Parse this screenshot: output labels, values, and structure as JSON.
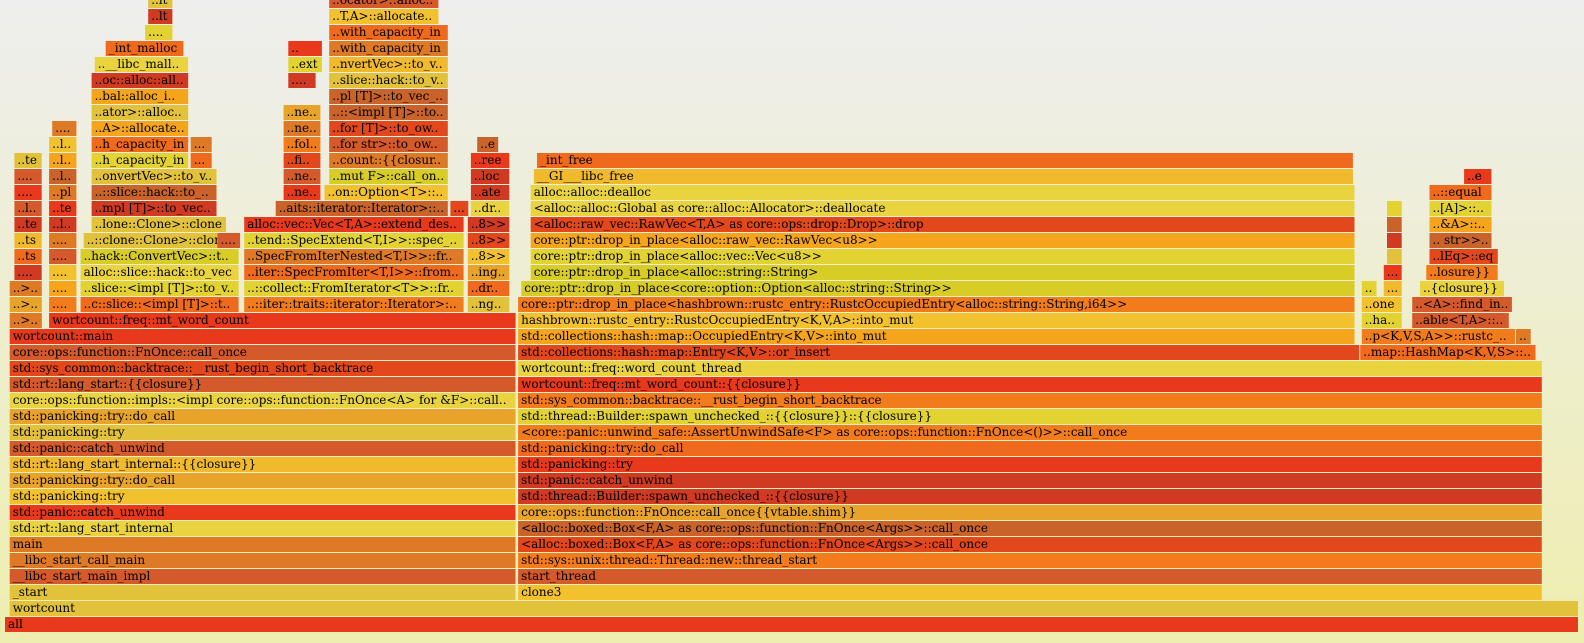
{
  "chart_data": {
    "type": "flamegraph",
    "total_samples": 1000,
    "palette": [
      "#e3471c",
      "#f06a1e",
      "#e8a32a",
      "#f2c12e",
      "#e2d232",
      "#d8cd27",
      "#f5a51b",
      "#d55a2b",
      "#c9632a",
      "#e8391d",
      "#f27b1c",
      "#e9d440",
      "#d13a22",
      "#f0ba2c",
      "#de7a26",
      "#e2c23b"
    ],
    "frames": [
      {
        "name": "all",
        "depth": 0,
        "start": 0,
        "width": 1000
      },
      {
        "name": "wortcount",
        "depth": 1,
        "start": 3,
        "width": 997
      },
      {
        "name": "_start",
        "depth": 2,
        "start": 3,
        "width": 322
      },
      {
        "name": "clone3",
        "depth": 2,
        "start": 326,
        "width": 651
      },
      {
        "name": "__libc_start_main_impl",
        "depth": 3,
        "start": 3,
        "width": 322
      },
      {
        "name": "start_thread",
        "depth": 3,
        "start": 326,
        "width": 651
      },
      {
        "name": "__libc_start_call_main",
        "depth": 4,
        "start": 3,
        "width": 322
      },
      {
        "name": "std::sys::unix::thread::Thread::new::thread_start",
        "depth": 4,
        "start": 326,
        "width": 651
      },
      {
        "name": "main",
        "depth": 5,
        "start": 3,
        "width": 322
      },
      {
        "name": "<alloc::boxed::Box<F,A> as core::ops::function::FnOnce<Args>>::call_once",
        "depth": 5,
        "start": 326,
        "width": 651
      },
      {
        "name": "std::rt::lang_start_internal",
        "depth": 6,
        "start": 3,
        "width": 322
      },
      {
        "name": "<alloc::boxed::Box<F,A> as core::ops::function::FnOnce<Args>>::call_once",
        "depth": 6,
        "start": 326,
        "width": 651
      },
      {
        "name": "std::panic::catch_unwind",
        "depth": 7,
        "start": 3,
        "width": 322
      },
      {
        "name": "core::ops::function::FnOnce::call_once{{vtable.shim}}",
        "depth": 7,
        "start": 326,
        "width": 651
      },
      {
        "name": "std::panicking::try",
        "depth": 8,
        "start": 3,
        "width": 322
      },
      {
        "name": "std::thread::Builder::spawn_unchecked_::{{closure}}",
        "depth": 8,
        "start": 326,
        "width": 651
      },
      {
        "name": "std::panicking::try::do_call",
        "depth": 9,
        "start": 3,
        "width": 322
      },
      {
        "name": "std::panic::catch_unwind",
        "depth": 9,
        "start": 326,
        "width": 651
      },
      {
        "name": "std::rt::lang_start_internal::{{closure}}",
        "depth": 10,
        "start": 3,
        "width": 322
      },
      {
        "name": "std::panicking::try",
        "depth": 10,
        "start": 326,
        "width": 651
      },
      {
        "name": "std::panic::catch_unwind",
        "depth": 11,
        "start": 3,
        "width": 322
      },
      {
        "name": "std::panicking::try::do_call",
        "depth": 11,
        "start": 326,
        "width": 651
      },
      {
        "name": "std::panicking::try",
        "depth": 12,
        "start": 3,
        "width": 322
      },
      {
        "name": "<core::panic::unwind_safe::AssertUnwindSafe<F> as core::ops::function::FnOnce<()>>::call_once",
        "depth": 12,
        "start": 326,
        "width": 651
      },
      {
        "name": "std::panicking::try::do_call",
        "depth": 13,
        "start": 3,
        "width": 322
      },
      {
        "name": "std::thread::Builder::spawn_unchecked_::{{closure}}::{{closure}}",
        "depth": 13,
        "start": 326,
        "width": 651
      },
      {
        "name": "core::ops::function::impls::<impl core::ops::function::FnOnce<A> for &F>::call_once",
        "depth": 14,
        "start": 3,
        "width": 322
      },
      {
        "name": "std::sys_common::backtrace::__rust_begin_short_backtrace",
        "depth": 14,
        "start": 326,
        "width": 651
      },
      {
        "name": "std::rt::lang_start::{{closure}}",
        "depth": 15,
        "start": 3,
        "width": 322
      },
      {
        "name": "wortcount::freq::mt_word_count::{{closure}}",
        "depth": 15,
        "start": 326,
        "width": 651
      },
      {
        "name": "std::sys_common::backtrace::__rust_begin_short_backtrace",
        "depth": 16,
        "start": 3,
        "width": 322
      },
      {
        "name": "wortcount::freq::word_count_thread",
        "depth": 16,
        "start": 326,
        "width": 651
      },
      {
        "name": "core::ops::function::FnOnce::call_once",
        "depth": 17,
        "start": 3,
        "width": 322
      },
      {
        "name": "std::collections::hash::map::Entry<K,V>::or_insert",
        "depth": 17,
        "start": 326,
        "width": 535
      },
      {
        "name": "..map::HashMap<K,V,S>::entry",
        "depth": 17,
        "start": 861,
        "width": 112
      },
      {
        "name": "wortcount::main",
        "depth": 18,
        "start": 3,
        "width": 322
      },
      {
        "name": "std::collections::hash::map::OccupiedEntry<K,V>::into_mut",
        "depth": 18,
        "start": 326,
        "width": 532
      },
      {
        "name": "..p<K,V,S,A>>::rustc_entry",
        "depth": 18,
        "start": 862,
        "width": 98
      },
      {
        "name": "..",
        "depth": 18,
        "start": 960,
        "width": 10
      },
      {
        "name": "..>>",
        "depth": 19,
        "start": 3,
        "width": 21
      },
      {
        "name": "wortcount::freq::mt_word_count",
        "depth": 19,
        "start": 28,
        "width": 297
      },
      {
        "name": "hashbrown::rustc_entry::RustcOccupiedEntry<K,V,A>::into_mut",
        "depth": 19,
        "start": 326,
        "width": 532
      },
      {
        "name": "..hash",
        "depth": 19,
        "start": 862,
        "width": 26
      },
      {
        "name": "..able<T,A>::find",
        "depth": 19,
        "start": 894,
        "width": 62
      },
      {
        "name": "..>>",
        "depth": 20,
        "start": 3,
        "width": 21
      },
      {
        "name": "..ne",
        "depth": 20,
        "start": 28,
        "width": 18
      },
      {
        "name": "..c::slice::<impl [T]>::to_vec",
        "depth": 20,
        "start": 48,
        "width": 101
      },
      {
        "name": "..::iter::traits::iterator::Iterator>::collect",
        "depth": 20,
        "start": 152,
        "width": 140
      },
      {
        "name": "..ng>>",
        "depth": 20,
        "start": 294,
        "width": 27
      },
      {
        "name": "core::ptr::drop_in_place<hashbrown::rustc_entry::RustcOccupiedEntry<alloc::string::String,i64>>",
        "depth": 20,
        "start": 326,
        "width": 532
      },
      {
        "name": "..one",
        "depth": 20,
        "start": 862,
        "width": 26
      },
      {
        "name": "..<A>::find_inner",
        "depth": 20,
        "start": 894,
        "width": 64
      },
      {
        "name": "..>>",
        "depth": 21,
        "start": 3,
        "width": 21
      },
      {
        "name": "..ne",
        "depth": 21,
        "start": 28,
        "width": 18
      },
      {
        "name": "..slice::<impl [T]>::to_vec_in",
        "depth": 21,
        "start": 48,
        "width": 101
      },
      {
        "name": "..::collect::FromIterator<T>>::from_iter",
        "depth": 21,
        "start": 152,
        "width": 140
      },
      {
        "name": "..drop",
        "depth": 21,
        "start": 294,
        "width": 27
      },
      {
        "name": "core::ptr::drop_in_place<core::option::Option<alloc::string::String>>",
        "depth": 21,
        "start": 328,
        "width": 530
      },
      {
        "name": "..",
        "depth": 21,
        "start": 862,
        "width": 10
      },
      {
        "name": "..h",
        "depth": 21,
        "start": 876,
        "width": 12
      },
      {
        "name": "..{closure}}",
        "depth": 21,
        "start": 899,
        "width": 54
      },
      {
        "name": "..op",
        "depth": 22,
        "start": 6,
        "width": 18
      },
      {
        "name": "..ne",
        "depth": 22,
        "start": 28,
        "width": 18
      },
      {
        "name": "alloc::slice::hack::to_vec",
        "depth": 22,
        "start": 48,
        "width": 101
      },
      {
        "name": "..iter::SpecFromIter<T,I>>::from_iter",
        "depth": 22,
        "start": 152,
        "width": 140
      },
      {
        "name": "..ing]>",
        "depth": 22,
        "start": 294,
        "width": 27
      },
      {
        "name": "core::ptr::drop_in_place<alloc::string::String>",
        "depth": 22,
        "start": 334,
        "width": 524
      },
      {
        "name": "..h",
        "depth": 22,
        "start": 876,
        "width": 12
      },
      {
        "name": "..losure}}",
        "depth": 22,
        "start": 903,
        "width": 46
      },
      {
        "name": "..ts",
        "depth": 23,
        "start": 6,
        "width": 18
      },
      {
        "name": "..ed",
        "depth": 23,
        "start": 28,
        "width": 18
      },
      {
        "name": "..hack::ConvertVec>::to_vec",
        "depth": 23,
        "start": 48,
        "width": 101
      },
      {
        "name": "..SpecFromIterNested<T,I>>::from_iter",
        "depth": 23,
        "start": 152,
        "width": 140
      },
      {
        "name": "..8>>",
        "depth": 23,
        "start": 294,
        "width": 27
      },
      {
        "name": "core::ptr::drop_in_place<alloc::vec::Vec<u8>>",
        "depth": 23,
        "start": 334,
        "width": 524
      },
      {
        "name": "..r",
        "depth": 23,
        "start": 878,
        "width": 10
      },
      {
        "name": "..lEq>::eq",
        "depth": 23,
        "start": 905,
        "width": 44
      },
      {
        "name": "..ts",
        "depth": 24,
        "start": 6,
        "width": 18
      },
      {
        "name": "..ed",
        "depth": 24,
        "start": 28,
        "width": 18
      },
      {
        "name": "..::clone::Clone>::clone",
        "depth": 24,
        "start": 50,
        "width": 99
      },
      {
        "name": "..te",
        "depth": 24,
        "start": 135,
        "width": 15
      },
      {
        "name": "..tend::SpecExtend<T,I>>::spec_extend",
        "depth": 24,
        "start": 152,
        "width": 140
      },
      {
        "name": "..8>>",
        "depth": 24,
        "start": 294,
        "width": 27
      },
      {
        "name": "core::ptr::drop_in_place<alloc::raw_vec::RawVec<u8>>",
        "depth": 24,
        "start": 334,
        "width": 524
      },
      {
        "name": "..r",
        "depth": 24,
        "start": 878,
        "width": 10
      },
      {
        "name": ".. str>>::eq",
        "depth": 24,
        "start": 905,
        "width": 40
      },
      {
        "name": "..te",
        "depth": 25,
        "start": 6,
        "width": 18
      },
      {
        "name": "..loc",
        "depth": 25,
        "start": 28,
        "width": 18
      },
      {
        "name": "..lone::Clone>::clone",
        "depth": 25,
        "start": 55,
        "width": 86
      },
      {
        "name": "alloc::vec::Vec<T,A>::extend_desugared",
        "depth": 25,
        "start": 152,
        "width": 140
      },
      {
        "name": "..8>>",
        "depth": 25,
        "start": 294,
        "width": 27
      },
      {
        "name": "<alloc::raw_vec::RawVec<T,A> as core::ops::drop::Drop>::drop",
        "depth": 25,
        "start": 334,
        "width": 524
      },
      {
        "name": "..r",
        "depth": 25,
        "start": 878,
        "width": 10
      },
      {
        "name": "..&A>::eq",
        "depth": 25,
        "start": 905,
        "width": 40
      },
      {
        "name": "..loc",
        "depth": 26,
        "start": 6,
        "width": 18
      },
      {
        "name": "..te",
        "depth": 26,
        "start": 28,
        "width": 18
      },
      {
        "name": "..mpl [T]>::to_vec_in",
        "depth": 26,
        "start": 55,
        "width": 80
      },
      {
        "name": "..aits::iterator::Iterator>::next",
        "depth": 26,
        "start": 172,
        "width": 110
      },
      {
        "name": "..e",
        "depth": 26,
        "start": 283,
        "width": 12
      },
      {
        "name": "..drop",
        "depth": 26,
        "start": 296,
        "width": 25
      },
      {
        "name": "<alloc::alloc::Global as core::alloc::Allocator>::deallocate",
        "depth": 26,
        "start": 334,
        "width": 524
      },
      {
        "name": "..r",
        "depth": 26,
        "start": 878,
        "width": 10
      },
      {
        "name": "..[A]>::eq",
        "depth": 26,
        "start": 905,
        "width": 40
      },
      {
        "name": "..ee",
        "depth": 27,
        "start": 6,
        "width": 18
      },
      {
        "name": "..pl",
        "depth": 27,
        "start": 28,
        "width": 18
      },
      {
        "name": "..::slice::hack::to_vec",
        "depth": 27,
        "start": 55,
        "width": 80
      },
      {
        "name": "..next",
        "depth": 27,
        "start": 177,
        "width": 24
      },
      {
        "name": "..on::Option<T>::map",
        "depth": 27,
        "start": 203,
        "width": 79
      },
      {
        "name": "..ate",
        "depth": 27,
        "start": 296,
        "width": 25
      },
      {
        "name": "alloc::alloc::dealloc",
        "depth": 27,
        "start": 334,
        "width": 524
      },
      {
        "name": "..::equal",
        "depth": 27,
        "start": 905,
        "width": 40
      },
      {
        "name": "..ee",
        "depth": 28,
        "start": 6,
        "width": 18
      },
      {
        "name": "..loc",
        "depth": 28,
        "start": 28,
        "width": 18
      },
      {
        "name": "..onvertVec>::to_vec",
        "depth": 28,
        "start": 55,
        "width": 80
      },
      {
        "name": "..next",
        "depth": 28,
        "start": 177,
        "width": 24
      },
      {
        "name": "..mut F>::call_once",
        "depth": 28,
        "start": 206,
        "width": 76
      },
      {
        "name": "..loc",
        "depth": 28,
        "start": 296,
        "width": 25
      },
      {
        "name": "__GI___libc_free",
        "depth": 28,
        "start": 336,
        "width": 521
      },
      {
        "name": "..e",
        "depth": 28,
        "start": 927,
        "width": 18
      },
      {
        "name": "..te",
        "depth": 29,
        "start": 6,
        "width": 18
      },
      {
        "name": "..loc",
        "depth": 29,
        "start": 28,
        "width": 18
      },
      {
        "name": "..h_capacity_in",
        "depth": 29,
        "start": 55,
        "width": 62
      },
      {
        "name": "..g",
        "depth": 29,
        "start": 118,
        "width": 14
      },
      {
        "name": "..find",
        "depth": 29,
        "start": 177,
        "width": 24
      },
      {
        "name": "..count::{{closure}}",
        "depth": 29,
        "start": 206,
        "width": 76
      },
      {
        "name": "..ree",
        "depth": 29,
        "start": 296,
        "width": 25
      },
      {
        "name": "_int_free",
        "depth": 29,
        "start": 338,
        "width": 519
      },
      {
        "name": "..loc",
        "depth": 30,
        "start": 28,
        "width": 18
      },
      {
        "name": "..h_capacity_in",
        "depth": 30,
        "start": 55,
        "width": 62
      },
      {
        "name": "..g",
        "depth": 30,
        "start": 118,
        "width": 14
      },
      {
        "name": "..fold",
        "depth": 30,
        "start": 177,
        "width": 24
      },
      {
        "name": "..for str>::to_owned",
        "depth": 30,
        "start": 206,
        "width": 76
      },
      {
        "name": "..e",
        "depth": 30,
        "start": 300,
        "width": 14
      },
      {
        "name": "..te",
        "depth": 31,
        "start": 30,
        "width": 16
      },
      {
        "name": "..A>::allocate_in",
        "depth": 31,
        "start": 55,
        "width": 62
      },
      {
        "name": "..next",
        "depth": 31,
        "start": 177,
        "width": 24
      },
      {
        "name": "..for [T]>::to_owned",
        "depth": 31,
        "start": 206,
        "width": 76
      },
      {
        "name": "..ator>::allocate",
        "depth": 32,
        "start": 55,
        "width": 62
      },
      {
        "name": "..next",
        "depth": 32,
        "start": 177,
        "width": 24
      },
      {
        "name": "..::<impl [T]>::to_vec",
        "depth": 32,
        "start": 206,
        "width": 76
      },
      {
        "name": "..bal::alloc_impl",
        "depth": 33,
        "start": 55,
        "width": 62
      },
      {
        "name": "..pl [T]>::to_vec_in",
        "depth": 33,
        "start": 206,
        "width": 76
      },
      {
        "name": "..oc::alloc::alloc",
        "depth": 34,
        "start": 55,
        "width": 62
      },
      {
        "name": "..ch",
        "depth": 34,
        "start": 180,
        "width": 18
      },
      {
        "name": "..slice::hack::to_vec",
        "depth": 34,
        "start": 206,
        "width": 76
      },
      {
        "name": "..__libc_malloc",
        "depth": 35,
        "start": 57,
        "width": 60
      },
      {
        "name": "..ext",
        "depth": 35,
        "start": 180,
        "width": 22
      },
      {
        "name": "..nvertVec>::to_vec",
        "depth": 35,
        "start": 206,
        "width": 76
      },
      {
        "name": "_int_malloc",
        "depth": 36,
        "start": 64,
        "width": 50
      },
      {
        "name": "..",
        "depth": 36,
        "start": 180,
        "width": 22
      },
      {
        "name": "..with_capacity_in",
        "depth": 36,
        "start": 206,
        "width": 76
      },
      {
        "name": "..ult",
        "depth": 37,
        "start": 89,
        "width": 18
      },
      {
        "name": "..with_capacity_in",
        "depth": 37,
        "start": 206,
        "width": 76
      },
      {
        "name": "..lt",
        "depth": 38,
        "start": 91,
        "width": 16
      },
      {
        "name": "..T,A>::allocate_in",
        "depth": 38,
        "start": 206,
        "width": 70
      },
      {
        "name": "..lt",
        "depth": 39,
        "start": 91,
        "width": 16
      },
      {
        "name": "..ocator>::allocate",
        "depth": 39,
        "start": 206,
        "width": 70
      }
    ]
  }
}
